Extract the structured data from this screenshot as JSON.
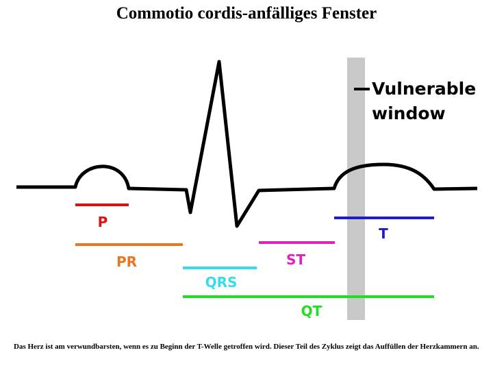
{
  "header": {
    "title": "Commotio cordis-anfälliges Fenster"
  },
  "diagram": {
    "vulnerable_window": [
      "Vulnerable",
      "window"
    ],
    "intervals": [
      "P",
      "PR",
      "QRS",
      "ST",
      "T",
      "QT"
    ]
  },
  "caption": "Das Herz ist am verwundbarsten, wenn es zu Beginn der T-Welle getroffen wird. Dieser Teil des Zyklus zeigt das Auffüllen der Herzkammern an."
}
